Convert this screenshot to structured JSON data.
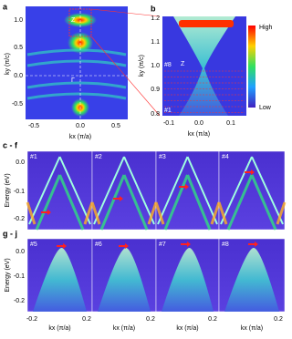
{
  "panel_a": {
    "label": "a",
    "y_axis_label": "ky (π/c)",
    "x_axis_label": "kx (π/a)",
    "y_ticks": [
      "1.0",
      "0.5",
      "0.0",
      "-0.5"
    ],
    "x_ticks": [
      "-0.5",
      "0.0",
      "0.5"
    ],
    "annotations": [
      "Z",
      "Γ"
    ]
  },
  "panel_b": {
    "label": "b",
    "y_axis_label": "ky (π/c)",
    "x_axis_label": "kx (π/a)",
    "y_ticks": [
      "1.2",
      "1.1",
      "1.0",
      "0.9",
      "0.8"
    ],
    "x_ticks": [
      "-0.1",
      "0.0",
      "0.1"
    ],
    "annotations": [
      "#8",
      "Z",
      "#1"
    ],
    "colorbar": [
      "High",
      "Low"
    ]
  },
  "row_cf": {
    "label": "c - f",
    "y_axis_label": "Energy (eV)",
    "y_ticks": [
      "0.0",
      "-0.1",
      "-0.2"
    ],
    "cuts": [
      "#1",
      "#2",
      "#3",
      "#4"
    ]
  },
  "row_gj": {
    "label": "g - j",
    "y_axis_label": "Energy (eV)",
    "y_ticks": [
      "0.0",
      "-0.1",
      "-0.2"
    ],
    "cuts": [
      "#5",
      "#6",
      "#7",
      "#8"
    ],
    "x_ticks": [
      "-0.2",
      "0.2",
      "0.2",
      "0.2",
      "0.2"
    ],
    "x_axis_label": "kx (π/a)"
  }
}
